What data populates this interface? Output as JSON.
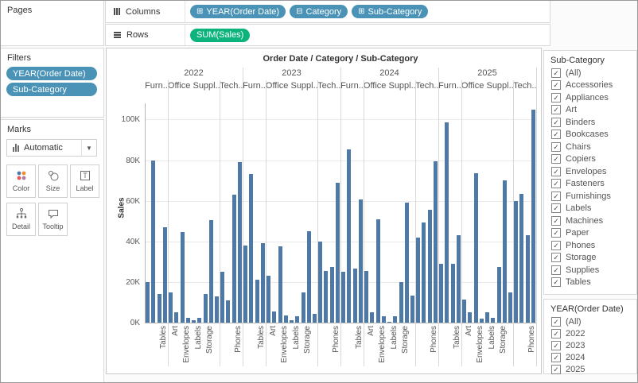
{
  "pages": {
    "title": "Pages"
  },
  "filters": {
    "title": "Filters",
    "pills": [
      "YEAR(Order Date)",
      "Sub-Category"
    ]
  },
  "marks": {
    "title": "Marks",
    "dropdown_value": "Automatic",
    "button_labels": [
      "Color",
      "Size",
      "Label",
      "Detail",
      "Tooltip"
    ]
  },
  "shelves": {
    "columns": {
      "label": "Columns",
      "pills": [
        {
          "prefix": "⊞",
          "text": "YEAR(Order Date)"
        },
        {
          "prefix": "⊟",
          "text": "Category"
        },
        {
          "prefix": "⊞",
          "text": "Sub-Category"
        }
      ]
    },
    "rows": {
      "label": "Rows",
      "pills": [
        {
          "text": "SUM(Sales)"
        }
      ]
    }
  },
  "chart_data": {
    "type": "bar",
    "title": "Order Date / Category / Sub-Category",
    "ylabel": "Sales",
    "yticks": [
      "0K",
      "20K",
      "40K",
      "60K",
      "80K",
      "100K"
    ],
    "ytick_step_k": 20,
    "ylim": [
      0,
      108
    ],
    "grid": "horizontal",
    "bar_color": "#4e79a7",
    "years": [
      "2022",
      "2023",
      "2024",
      "2025"
    ],
    "category_headers": [
      "Furn..",
      "Office Suppl..",
      "Tech.."
    ],
    "pane_sizes": [
      4,
      9,
      4
    ],
    "subcategories": [
      "Bookcases",
      "Chairs",
      "Furnishings",
      "Tables",
      "Appliances",
      "Art",
      "Binders",
      "Envelopes",
      "Fasteners",
      "Labels",
      "Paper",
      "Storage",
      "Supplies",
      "Accessories",
      "Copiers",
      "Machines",
      "Phones"
    ],
    "visible_x_labels": [
      {
        "slot": 3,
        "label": "Tables"
      },
      {
        "slot": 5,
        "label": "Art"
      },
      {
        "slot": 7,
        "label": "Envelopes"
      },
      {
        "slot": 9,
        "label": "Labels"
      },
      {
        "slot": 11,
        "label": "Storage"
      },
      {
        "slot": 16,
        "label": "Phones"
      }
    ],
    "series": [
      {
        "name": "2022",
        "values_k": [
          20,
          80,
          14,
          47,
          15,
          5,
          44.5,
          2.5,
          1,
          2.5,
          14,
          50.5,
          13,
          25,
          11,
          63,
          79
        ]
      },
      {
        "name": "2023",
        "values_k": [
          38,
          73,
          21,
          39,
          23,
          5.5,
          37.5,
          3.5,
          1,
          3,
          15,
          45,
          4.5,
          40,
          25.5,
          27.5,
          69
        ]
      },
      {
        "name": "2024",
        "values_k": [
          25,
          85.5,
          26.5,
          60.5,
          25.5,
          5,
          51,
          3,
          0.5,
          3,
          20,
          59,
          13.5,
          42,
          49.5,
          55.5,
          79.5
        ]
      },
      {
        "name": "2025",
        "values_k": [
          29,
          98.5,
          29,
          43,
          11.5,
          5,
          73.5,
          2,
          5,
          2.5,
          27.5,
          70,
          15,
          60,
          63.5,
          43,
          105
        ]
      }
    ]
  },
  "subcategory_filter": {
    "title": "Sub-Category",
    "checked_glyph": "✓",
    "items": [
      "(All)",
      "Accessories",
      "Appliances",
      "Art",
      "Binders",
      "Bookcases",
      "Chairs",
      "Copiers",
      "Envelopes",
      "Fasteners",
      "Furnishings",
      "Labels",
      "Machines",
      "Paper",
      "Phones",
      "Storage",
      "Supplies",
      "Tables"
    ]
  },
  "year_filter": {
    "title": "YEAR(Order Date)",
    "checked_glyph": "✓",
    "items": [
      "(All)",
      "2022",
      "2023",
      "2024",
      "2025"
    ]
  }
}
